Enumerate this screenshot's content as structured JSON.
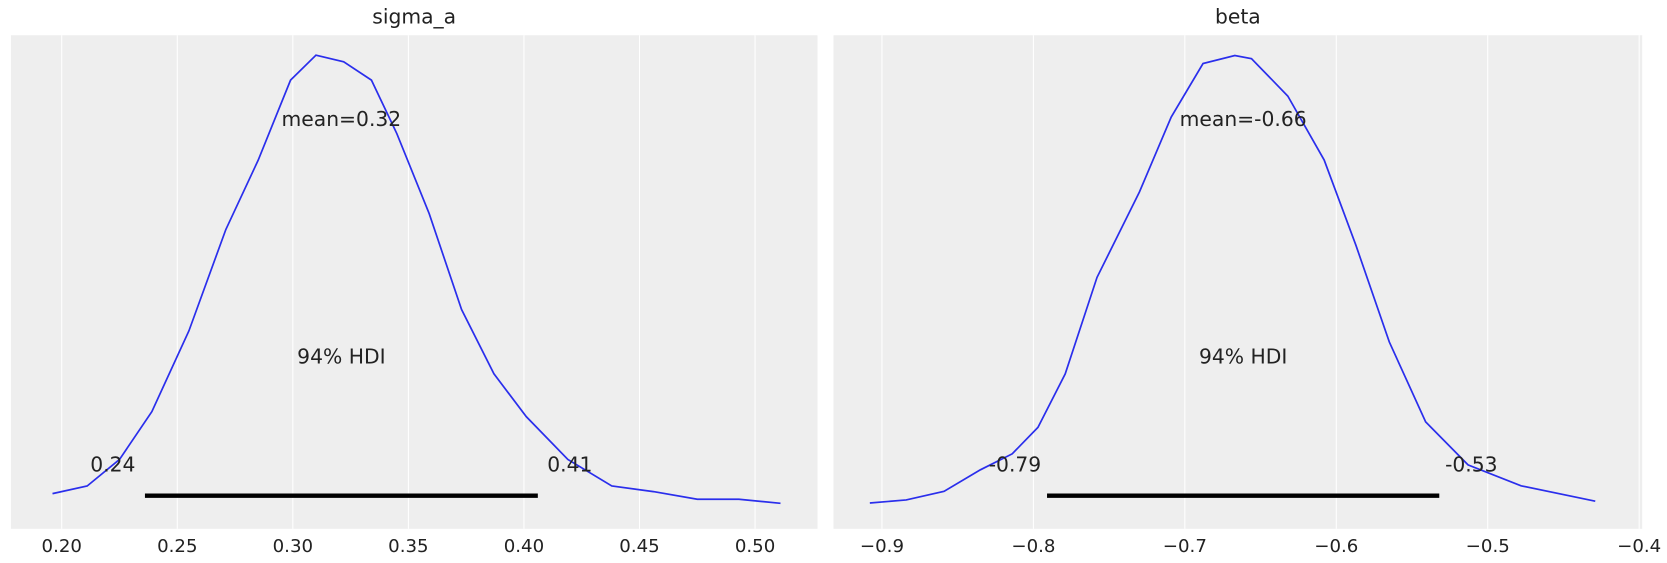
{
  "chart_data": [
    {
      "type": "density",
      "title": "sigma_a",
      "color": "#2a2eec",
      "grid": true,
      "x": [
        0.196,
        0.211,
        0.225,
        0.239,
        0.255,
        0.271,
        0.285,
        0.299,
        0.31,
        0.322,
        0.334,
        0.345,
        0.359,
        0.373,
        0.387,
        0.401,
        0.419,
        0.438,
        0.456,
        0.475,
        0.493,
        0.511
      ],
      "values": [
        0.21,
        0.36,
        0.88,
        1.82,
        3.4,
        5.39,
        6.75,
        8.32,
        8.81,
        8.68,
        8.32,
        7.27,
        5.7,
        3.82,
        2.56,
        1.72,
        0.88,
        0.36,
        0.25,
        0.1,
        0.1,
        0.02
      ],
      "xlim": [
        0.178,
        0.527
      ],
      "ylim": [
        -0.48,
        9.2
      ],
      "xticks": [
        {
          "value": 0.2,
          "label": "0.20"
        },
        {
          "value": 0.25,
          "label": "0.25"
        },
        {
          "value": 0.3,
          "label": "0.30"
        },
        {
          "value": 0.35,
          "label": "0.35"
        },
        {
          "value": 0.4,
          "label": "0.40"
        },
        {
          "value": 0.45,
          "label": "0.45"
        },
        {
          "value": 0.5,
          "label": "0.50"
        }
      ],
      "mean_label": "mean=0.32",
      "hdi_label": "94% HDI",
      "hdi": {
        "values": [
          0.236,
          0.406
        ],
        "value_labels": [
          "0.24",
          "0.41"
        ]
      }
    },
    {
      "type": "density",
      "title": "beta",
      "color": "#2a2eec",
      "grid": true,
      "x": [
        -0.908,
        -0.884,
        -0.859,
        -0.835,
        -0.814,
        -0.797,
        -0.779,
        -0.758,
        -0.73,
        -0.709,
        -0.688,
        -0.667,
        -0.656,
        -0.632,
        -0.608,
        -0.587,
        -0.565,
        -0.541,
        -0.513,
        -0.478,
        -0.429
      ],
      "values": [
        0.02,
        0.07,
        0.21,
        0.56,
        0.82,
        1.25,
        2.12,
        3.69,
        5.08,
        6.3,
        7.17,
        7.3,
        7.25,
        6.64,
        5.6,
        4.21,
        2.64,
        1.34,
        0.64,
        0.3,
        0.05
      ],
      "xlim": [
        -0.932,
        -0.398
      ],
      "ylim": [
        -0.4,
        7.63
      ],
      "xticks": [
        {
          "value": -0.9,
          "label": "−0.9"
        },
        {
          "value": -0.8,
          "label": "−0.8"
        },
        {
          "value": -0.7,
          "label": "−0.7"
        },
        {
          "value": -0.6,
          "label": "−0.6"
        },
        {
          "value": -0.5,
          "label": "−0.5"
        },
        {
          "value": -0.4,
          "label": "−0.4"
        }
      ],
      "mean_label": "mean=-0.66",
      "hdi_label": "94% HDI",
      "hdi": {
        "values": [
          -0.791,
          -0.532
        ],
        "value_labels": [
          "-0.79",
          "-0.53"
        ]
      }
    }
  ]
}
